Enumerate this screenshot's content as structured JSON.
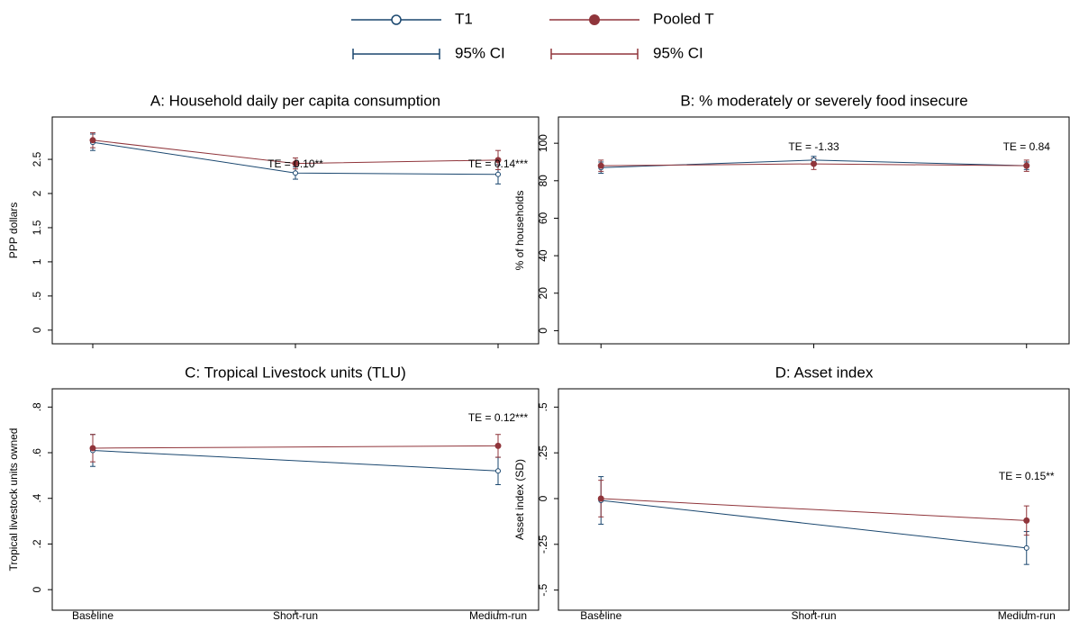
{
  "chart_data": [
    {
      "type": "line",
      "title": "A: Household daily per capita consumption",
      "ylabel": "PPP dollars",
      "xlim": [
        0.8,
        3.2
      ],
      "xticks": [
        1,
        2,
        3
      ],
      "show_xtick_labels": false,
      "ylim": [
        -0.2,
        3.12
      ],
      "yticks": [
        0,
        {
          "value": 0.5,
          "label": ".5"
        },
        1,
        1.5,
        2,
        2.5
      ],
      "series": [
        {
          "name": "T1",
          "ci_label": "95% CI",
          "color": "#1a476f",
          "marker": "hollow",
          "x": [
            1,
            2,
            3
          ],
          "values": [
            2.75,
            2.3,
            2.28
          ],
          "errors": [
            0.12,
            0.09,
            0.14
          ]
        },
        {
          "name": "Pooled T",
          "ci_label": "95% CI",
          "color": "#90353b",
          "marker": "filled",
          "x": [
            1,
            2,
            3
          ],
          "values": [
            2.78,
            2.44,
            2.49
          ],
          "errors": [
            0.11,
            0.08,
            0.14
          ]
        }
      ],
      "annotations": [
        {
          "text": "TE = 0.10**",
          "x": 2
        },
        {
          "text": "TE = 0.14***",
          "x": 3
        }
      ]
    },
    {
      "type": "line",
      "title": "B: % moderately or severely food insecure",
      "ylabel": "% of households",
      "xlim": [
        0.8,
        3.2
      ],
      "xticks": [
        1,
        2,
        3
      ],
      "show_xtick_labels": false,
      "ylim": [
        -7,
        114
      ],
      "yticks": [
        0,
        20,
        40,
        60,
        80,
        100
      ],
      "series": [
        {
          "name": "T1",
          "ci_label": "95% CI",
          "color": "#1a476f",
          "marker": "hollow",
          "x": [
            1,
            2,
            3
          ],
          "values": [
            87,
            91,
            88
          ],
          "errors": [
            3,
            2,
            2
          ]
        },
        {
          "name": "Pooled T",
          "ci_label": "95% CI",
          "color": "#90353b",
          "marker": "filled",
          "x": [
            1,
            2,
            3
          ],
          "values": [
            88,
            89,
            88
          ],
          "errors": [
            3,
            3,
            3
          ]
        }
      ],
      "annotations": [
        {
          "text": "TE = -1.33",
          "x": 2
        },
        {
          "text": "TE = 0.84",
          "x": 3
        }
      ]
    },
    {
      "type": "line",
      "title": "C: Tropical Livestock units (TLU)",
      "ylabel": "Tropical livestock units owned",
      "xlim": [
        0.8,
        3.2
      ],
      "xticks": [
        {
          "value": 1,
          "label": "Baseline"
        },
        {
          "value": 2,
          "label": "Short-run"
        },
        {
          "value": 3,
          "label": "Medium-run"
        }
      ],
      "show_xtick_labels": true,
      "ylim": [
        -0.09,
        0.88
      ],
      "yticks": [
        0,
        {
          "value": 0.2,
          "label": ".2"
        },
        {
          "value": 0.4,
          "label": ".4"
        },
        {
          "value": 0.6,
          "label": ".6"
        },
        {
          "value": 0.8,
          "label": ".8"
        }
      ],
      "series": [
        {
          "name": "T1",
          "ci_label": "95% CI",
          "color": "#1a476f",
          "marker": "hollow",
          "x": [
            1,
            3
          ],
          "values": [
            0.61,
            0.52
          ],
          "errors": [
            0.07,
            0.06
          ]
        },
        {
          "name": "Pooled T",
          "ci_label": "95% CI",
          "color": "#90353b",
          "marker": "filled",
          "x": [
            1,
            3
          ],
          "values": [
            0.62,
            0.63
          ],
          "errors": [
            0.06,
            0.05
          ]
        }
      ],
      "annotations": [
        {
          "text": "TE = 0.12***",
          "x": 3
        }
      ]
    },
    {
      "type": "line",
      "title": "D: Asset index",
      "ylabel": "Asset index (SD)",
      "xlim": [
        0.8,
        3.2
      ],
      "xticks": [
        {
          "value": 1,
          "label": "Baseline"
        },
        {
          "value": 2,
          "label": "Short-run"
        },
        {
          "value": 3,
          "label": "Medium-run"
        }
      ],
      "show_xtick_labels": true,
      "ylim": [
        -0.61,
        0.6
      ],
      "yticks": [
        {
          "value": -0.5,
          "label": "-.5"
        },
        {
          "value": -0.25,
          "label": "-.25"
        },
        0,
        {
          "value": 0.25,
          "label": ".25"
        },
        {
          "value": 0.5,
          "label": ".5"
        }
      ],
      "series": [
        {
          "name": "T1",
          "ci_label": "95% CI",
          "color": "#1a476f",
          "marker": "hollow",
          "x": [
            1,
            3
          ],
          "values": [
            -0.01,
            -0.27
          ],
          "errors": [
            0.13,
            0.09
          ]
        },
        {
          "name": "Pooled T",
          "ci_label": "95% CI",
          "color": "#90353b",
          "marker": "filled",
          "x": [
            1,
            3
          ],
          "values": [
            0.0,
            -0.12
          ],
          "errors": [
            0.1,
            0.08
          ]
        }
      ],
      "annotations": [
        {
          "text": "TE = 0.15**",
          "x": 3
        }
      ]
    }
  ]
}
